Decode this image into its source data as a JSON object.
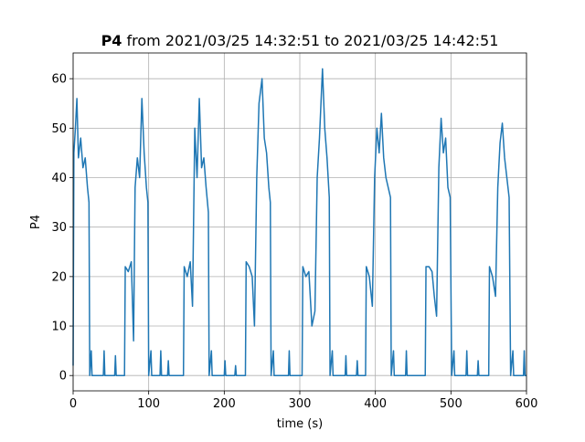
{
  "chart_data": {
    "type": "line",
    "title": [
      "P4",
      " from 2021/03/25 14:32:51 to 2021/03/25 14:42:51"
    ],
    "xlabel": "time (s)",
    "ylabel": "P4",
    "xlim": [
      0,
      600
    ],
    "ylim": [
      -3.1,
      65.2
    ],
    "xticks": [
      0,
      100,
      200,
      300,
      400,
      500,
      600
    ],
    "yticks": [
      0,
      10,
      20,
      30,
      40,
      50,
      60
    ],
    "grid": true,
    "x": [
      0,
      1,
      3,
      5,
      7,
      10,
      13,
      16,
      19,
      21,
      22,
      24,
      25,
      40,
      41,
      42,
      55,
      56,
      57,
      68,
      69,
      73,
      77,
      80,
      82,
      85,
      88,
      91,
      94,
      97,
      99,
      100,
      103,
      104,
      115,
      116,
      117,
      125,
      126,
      127,
      146,
      147,
      151,
      155,
      158,
      161,
      164,
      167,
      170,
      173,
      176,
      179,
      180,
      183,
      184,
      200,
      201,
      202,
      214,
      215,
      216,
      228,
      229,
      233,
      237,
      240,
      243,
      246,
      250,
      253,
      256,
      259,
      261,
      262,
      265,
      266,
      285,
      286,
      287,
      300,
      303,
      304,
      308,
      312,
      316,
      320,
      323,
      326,
      330,
      333,
      336,
      339,
      340,
      343,
      344,
      360,
      361,
      362,
      375,
      376,
      377,
      387,
      388,
      392,
      396,
      399,
      402,
      405,
      408,
      411,
      414,
      417,
      420,
      421,
      424,
      425,
      440,
      441,
      442,
      458,
      466,
      467,
      471,
      475,
      478,
      481,
      484,
      487,
      490,
      493,
      496,
      499,
      501,
      504,
      505,
      520,
      521,
      522,
      535,
      536,
      537,
      550,
      551,
      555,
      559,
      562,
      565,
      568,
      571,
      574,
      577,
      579,
      582,
      583,
      596,
      597,
      598,
      600
    ],
    "series": [
      {
        "name": "P4",
        "color": "#1f77b4",
        "values": [
          2,
          45,
          50,
          56,
          44,
          48,
          42,
          44,
          38,
          35,
          0,
          5,
          0,
          0,
          5,
          0,
          0,
          4,
          0,
          0,
          22,
          21,
          23,
          7,
          38,
          44,
          40,
          56,
          45,
          38,
          35,
          0,
          5,
          0,
          0,
          5,
          0,
          0,
          3,
          0,
          0,
          22,
          20,
          23,
          14,
          50,
          40,
          56,
          42,
          44,
          38,
          33,
          0,
          5,
          0,
          0,
          3,
          0,
          0,
          2,
          0,
          0,
          23,
          22,
          20,
          10,
          40,
          55,
          60,
          48,
          45,
          38,
          35,
          0,
          5,
          0,
          0,
          5,
          0,
          0,
          0,
          22,
          20,
          21,
          10,
          13,
          40,
          48,
          62,
          50,
          44,
          36,
          0,
          5,
          0,
          0,
          4,
          0,
          0,
          3,
          0,
          0,
          22,
          20,
          14,
          40,
          50,
          45,
          53,
          44,
          40,
          38,
          36,
          0,
          5,
          0,
          0,
          5,
          0,
          0,
          0,
          22,
          22,
          21,
          16,
          12,
          42,
          52,
          45,
          48,
          38,
          36,
          0,
          5,
          0,
          0,
          5,
          0,
          0,
          3,
          0,
          0,
          22,
          20,
          16,
          38,
          47,
          51,
          44,
          40,
          36,
          0,
          5,
          0,
          0,
          5,
          0,
          0
        ]
      }
    ]
  }
}
